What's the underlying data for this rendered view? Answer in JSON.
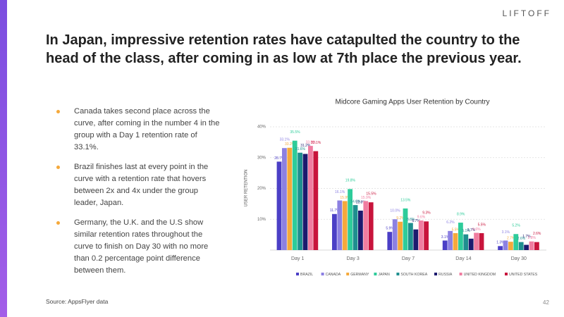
{
  "logo": "LIFTOFF",
  "title": "In Japan, impressive retention rates have catapulted the country to the head of the class, after coming in as low at 7th place the previous year.",
  "bullets": [
    "Canada takes second place across the curve, after coming in the number 4 in the group with a Day 1 retention rate of 33.1%.",
    "Brazil finishes last at every point in the curve with a retention rate that hovers between 2x and 4x under the group leader, Japan.",
    "Germany, the U.K. and the U.S show similar retention rates throughout the curve to finish on Day 30 with no more than 0.2 percentage point difference between them."
  ],
  "source": "Source: AppsFlyer data",
  "page_number": "42",
  "chart_data": {
    "type": "bar",
    "title": "Midcore Gaming Apps User Retention by Country",
    "y_label": "USER RETENTION",
    "categories": [
      "Day 1",
      "Day 3",
      "Day 7",
      "Day 14",
      "Day 30"
    ],
    "ylim": [
      0,
      40
    ],
    "yticks": [
      {
        "value": 10,
        "label": "10%"
      },
      {
        "value": 20,
        "label": "20%"
      },
      {
        "value": 30,
        "label": "30%"
      },
      {
        "value": 40,
        "label": "40%"
      }
    ],
    "grid": true,
    "legend": "bottom",
    "series": [
      {
        "name": "BRAZIL",
        "color": "#4b3fc6",
        "values": [
          28.7,
          11.7,
          5.9,
          3.1,
          1.3
        ],
        "value_labels": [
          "28.7%",
          "11.7%",
          "5.9%",
          "3.1%",
          "1.3%"
        ]
      },
      {
        "name": "CANADA",
        "color": "#8c80e2",
        "values": [
          33.1,
          16.1,
          10.0,
          6.2,
          3.1
        ],
        "value_labels": [
          "33.1%",
          "16.1%",
          "10.0%",
          "6.2%",
          "3.1%"
        ]
      },
      {
        "name": "GERMANY",
        "color": "#f5a93b",
        "values": [
          33.2,
          15.9,
          9.2,
          5.5,
          2.7
        ],
        "value_labels": [
          "33.2%",
          "15.9%",
          "9.2%",
          "5.5%",
          "2.7%"
        ]
      },
      {
        "name": "JAPAN",
        "color": "#2ecc9a",
        "values": [
          35.5,
          19.8,
          13.5,
          8.9,
          5.2
        ],
        "value_labels": [
          "35.5%",
          "19.8%",
          "13.5%",
          "8.9%",
          "5.2%"
        ]
      },
      {
        "name": "SOUTH KOREA",
        "color": "#1f8f8f",
        "values": [
          31.6,
          14.6,
          8.8,
          5.1,
          2.6
        ],
        "value_labels": [
          "31.6%",
          "14.6%",
          "8.8%",
          "5.1%",
          "2.6%"
        ]
      },
      {
        "name": "RUSSIA",
        "color": "#1c1a6e",
        "values": [
          31.2,
          12.8,
          6.7,
          3.7,
          1.7
        ],
        "value_labels": [
          "31.2%",
          "12.8%",
          "6.7%",
          "3.7%",
          "1.7%"
        ]
      },
      {
        "name": "UNITED KINGDOM",
        "color": "#f07ca0",
        "values": [
          33.8,
          15.9,
          9.6,
          5.6,
          2.8
        ],
        "value_labels": [
          "33.8%",
          "15.9%",
          "9.6%",
          "5.6%",
          "2.8%"
        ]
      },
      {
        "name": "UNITED STATES",
        "color": "#c8143c",
        "values": [
          32.1,
          15.5,
          9.3,
          5.5,
          2.6
        ],
        "value_labels": [
          "32.1%",
          "15.5%",
          "9.3%",
          "5.5%",
          "2.6%"
        ]
      }
    ]
  }
}
